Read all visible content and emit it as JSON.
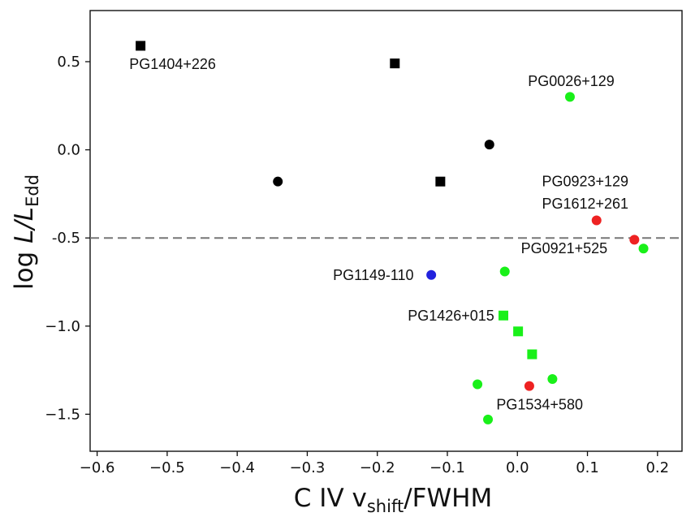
{
  "chart_data": {
    "type": "scatter",
    "title": "",
    "xlabel": {
      "base": "C IV v",
      "sub": "shift",
      "tail": "/FWHM"
    },
    "ylabel": {
      "pre": "log ",
      "italic": "L/L",
      "sub": "Edd"
    },
    "xlim": [
      -0.61,
      0.235
    ],
    "ylim": [
      -1.71,
      0.79
    ],
    "xticks": [
      -0.6,
      -0.5,
      -0.4,
      -0.3,
      -0.2,
      -0.1,
      0.0,
      0.1,
      0.2
    ],
    "xtick_labels": [
      "−0.6",
      "−0.5",
      "−0.4",
      "−0.3",
      "−0.2",
      "−0.1",
      "0.0",
      "0.1",
      "0.2"
    ],
    "yticks": [
      0.5,
      0.0,
      -0.5,
      -1.0,
      -1.5
    ],
    "ytick_labels": [
      "0.5",
      "0.0",
      "-0.5",
      "−1.0",
      "−1.5"
    ],
    "grid": false,
    "hline": {
      "y": -0.5,
      "style": "dashed",
      "color": "#777777"
    },
    "colors": {
      "black": "#000000",
      "green": "#19f019",
      "red": "#ee2222",
      "blue": "#2222dd"
    },
    "points": [
      {
        "x": -0.538,
        "y": 0.59,
        "marker": "square",
        "color": "black"
      },
      {
        "x": -0.175,
        "y": 0.49,
        "marker": "square",
        "color": "black"
      },
      {
        "x": -0.11,
        "y": -0.18,
        "marker": "square",
        "color": "black"
      },
      {
        "x": -0.342,
        "y": -0.18,
        "marker": "circle",
        "color": "black"
      },
      {
        "x": -0.04,
        "y": 0.03,
        "marker": "circle",
        "color": "black"
      },
      {
        "x": 0.075,
        "y": 0.3,
        "marker": "circle",
        "color": "green"
      },
      {
        "x": 0.113,
        "y": -0.4,
        "marker": "circle",
        "color": "red"
      },
      {
        "x": 0.167,
        "y": -0.51,
        "marker": "circle",
        "color": "red"
      },
      {
        "x": 0.18,
        "y": -0.56,
        "marker": "circle",
        "color": "green"
      },
      {
        "x": -0.018,
        "y": -0.69,
        "marker": "circle",
        "color": "green"
      },
      {
        "x": -0.123,
        "y": -0.71,
        "marker": "circle",
        "color": "blue"
      },
      {
        "x": -0.02,
        "y": -0.94,
        "marker": "square",
        "color": "green"
      },
      {
        "x": 0.001,
        "y": -1.03,
        "marker": "square",
        "color": "green"
      },
      {
        "x": 0.021,
        "y": -1.16,
        "marker": "square",
        "color": "green"
      },
      {
        "x": -0.057,
        "y": -1.33,
        "marker": "circle",
        "color": "green"
      },
      {
        "x": 0.05,
        "y": -1.3,
        "marker": "circle",
        "color": "green"
      },
      {
        "x": 0.017,
        "y": -1.34,
        "marker": "circle",
        "color": "red"
      },
      {
        "x": -0.042,
        "y": -1.53,
        "marker": "circle",
        "color": "green"
      }
    ],
    "annotations": [
      {
        "text": "PG1404+226",
        "x": -0.554,
        "y": 0.485,
        "anchor": "start"
      },
      {
        "text": "PG0026+129",
        "x": 0.015,
        "y": 0.39,
        "anchor": "start"
      },
      {
        "text": "PG0923+129",
        "x": 0.035,
        "y": -0.18,
        "anchor": "start"
      },
      {
        "text": "PG1612+261",
        "x": 0.035,
        "y": -0.305,
        "anchor": "start"
      },
      {
        "text": "PG0921+525",
        "x": 0.005,
        "y": -0.56,
        "anchor": "start"
      },
      {
        "text": "PG1149-110",
        "x": -0.148,
        "y": -0.71,
        "anchor": "end"
      },
      {
        "text": "PG1426+015",
        "x": -0.033,
        "y": -0.94,
        "anchor": "end"
      },
      {
        "text": "PG1534+580",
        "x": -0.03,
        "y": -1.445,
        "anchor": "start"
      }
    ]
  }
}
